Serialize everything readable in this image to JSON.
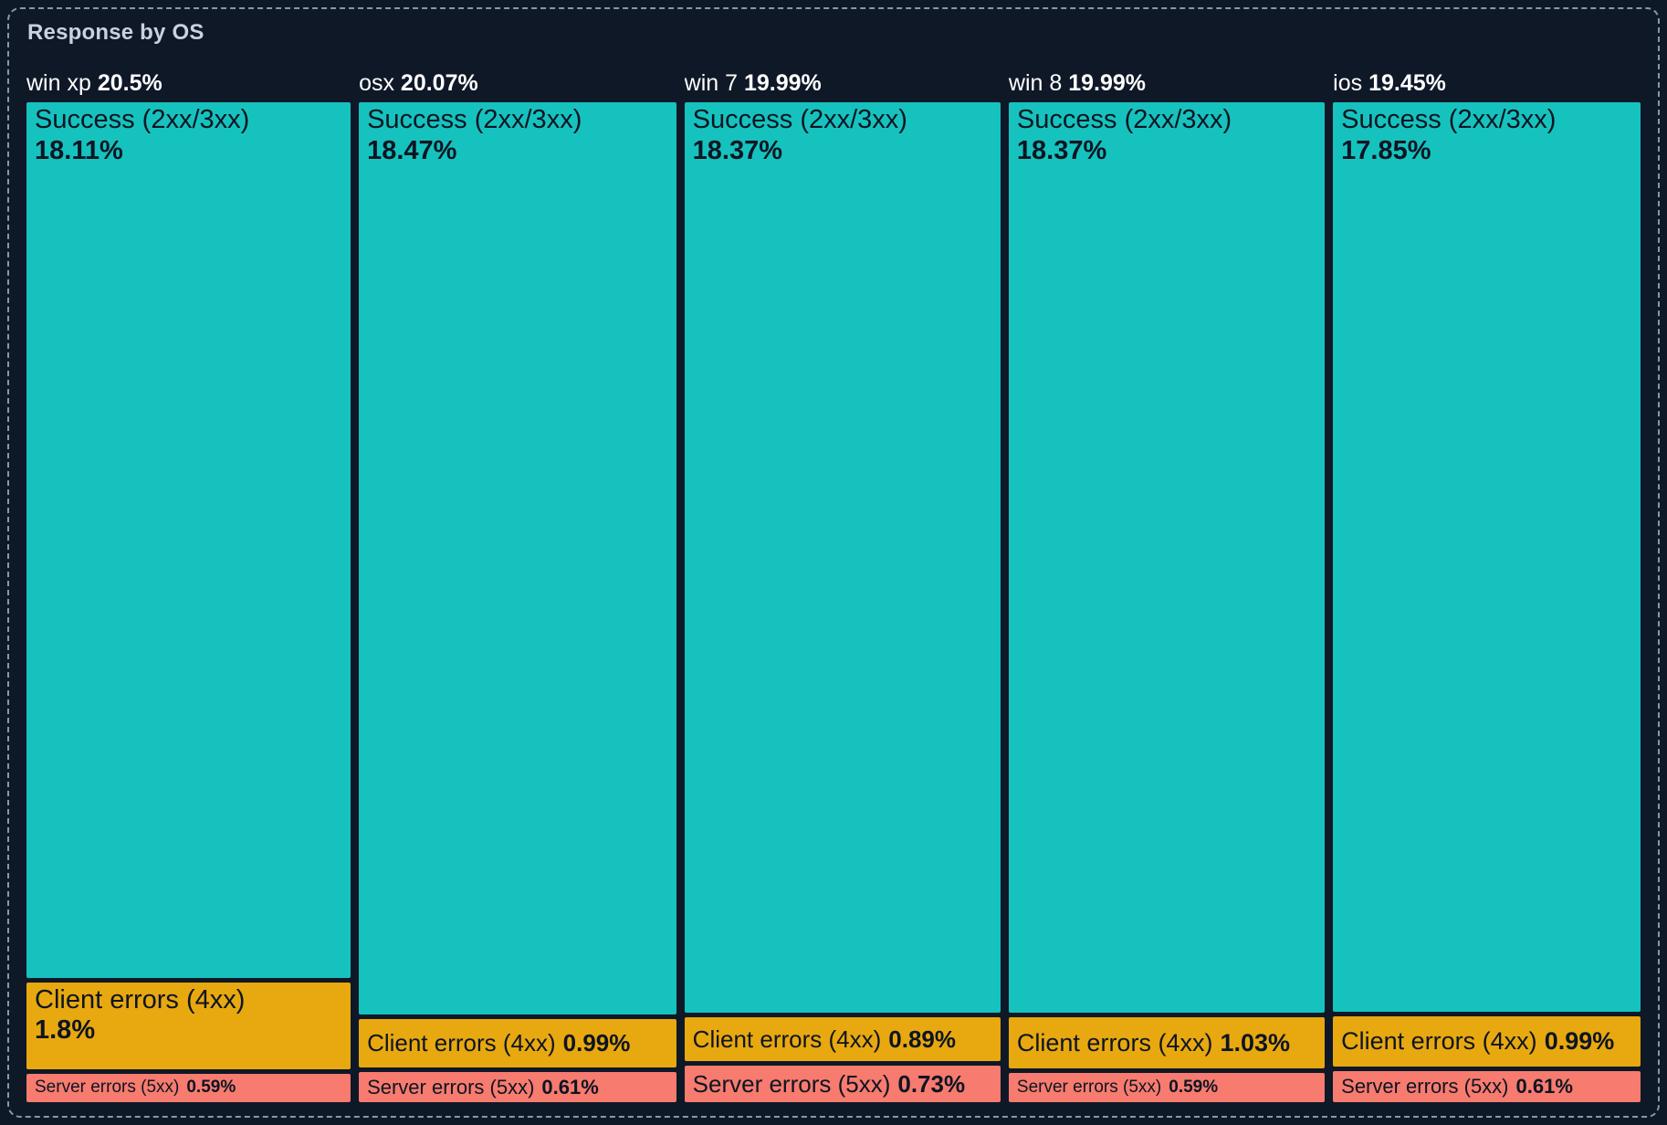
{
  "panel": {
    "title": "Response by OS"
  },
  "colors": {
    "background": "#0f1827",
    "panel_border": "#8698ad",
    "title_text": "#c9d2dd",
    "column_label_text": "#ffffff",
    "block_text": "#0d1522",
    "success": "#16c2be",
    "client_errors": "#e8a80f",
    "server_errors": "#f77b6f"
  },
  "chart_data": {
    "type": "icicle",
    "title": "Response by OS",
    "orientation": "vertical-columns",
    "unit": "%",
    "legend": "none",
    "axes": "none",
    "notes": "Column widths proportional to OS total %; segment heights proportional to segment % within column",
    "groups": [
      {
        "name": "win xp",
        "total": 20.5,
        "total_label": "20.5%",
        "segments": [
          {
            "key": "success",
            "label": "Success (2xx/3xx)",
            "value": 18.11,
            "value_label": "18.11%"
          },
          {
            "key": "client_errors",
            "label": "Client errors (4xx)",
            "value": 1.8,
            "value_label": "1.8%"
          },
          {
            "key": "server_errors",
            "label": "Server errors (5xx)",
            "value": 0.59,
            "value_label": "0.59%"
          }
        ]
      },
      {
        "name": "osx",
        "total": 20.07,
        "total_label": "20.07%",
        "segments": [
          {
            "key": "success",
            "label": "Success (2xx/3xx)",
            "value": 18.47,
            "value_label": "18.47%"
          },
          {
            "key": "client_errors",
            "label": "Client errors (4xx)",
            "value": 0.99,
            "value_label": "0.99%"
          },
          {
            "key": "server_errors",
            "label": "Server errors (5xx)",
            "value": 0.61,
            "value_label": "0.61%"
          }
        ]
      },
      {
        "name": "win 7",
        "total": 19.99,
        "total_label": "19.99%",
        "segments": [
          {
            "key": "success",
            "label": "Success (2xx/3xx)",
            "value": 18.37,
            "value_label": "18.37%"
          },
          {
            "key": "client_errors",
            "label": "Client errors (4xx)",
            "value": 0.89,
            "value_label": "0.89%"
          },
          {
            "key": "server_errors",
            "label": "Server errors (5xx)",
            "value": 0.73,
            "value_label": "0.73%"
          }
        ]
      },
      {
        "name": "win 8",
        "total": 19.99,
        "total_label": "19.99%",
        "segments": [
          {
            "key": "success",
            "label": "Success (2xx/3xx)",
            "value": 18.37,
            "value_label": "18.37%"
          },
          {
            "key": "client_errors",
            "label": "Client errors (4xx)",
            "value": 1.03,
            "value_label": "1.03%"
          },
          {
            "key": "server_errors",
            "label": "Server errors (5xx)",
            "value": 0.59,
            "value_label": "0.59%"
          }
        ]
      },
      {
        "name": "ios",
        "total": 19.45,
        "total_label": "19.45%",
        "segments": [
          {
            "key": "success",
            "label": "Success (2xx/3xx)",
            "value": 17.85,
            "value_label": "17.85%"
          },
          {
            "key": "client_errors",
            "label": "Client errors (4xx)",
            "value": 0.99,
            "value_label": "0.99%"
          },
          {
            "key": "server_errors",
            "label": "Server errors (5xx)",
            "value": 0.61,
            "value_label": "0.61%"
          }
        ]
      }
    ]
  }
}
